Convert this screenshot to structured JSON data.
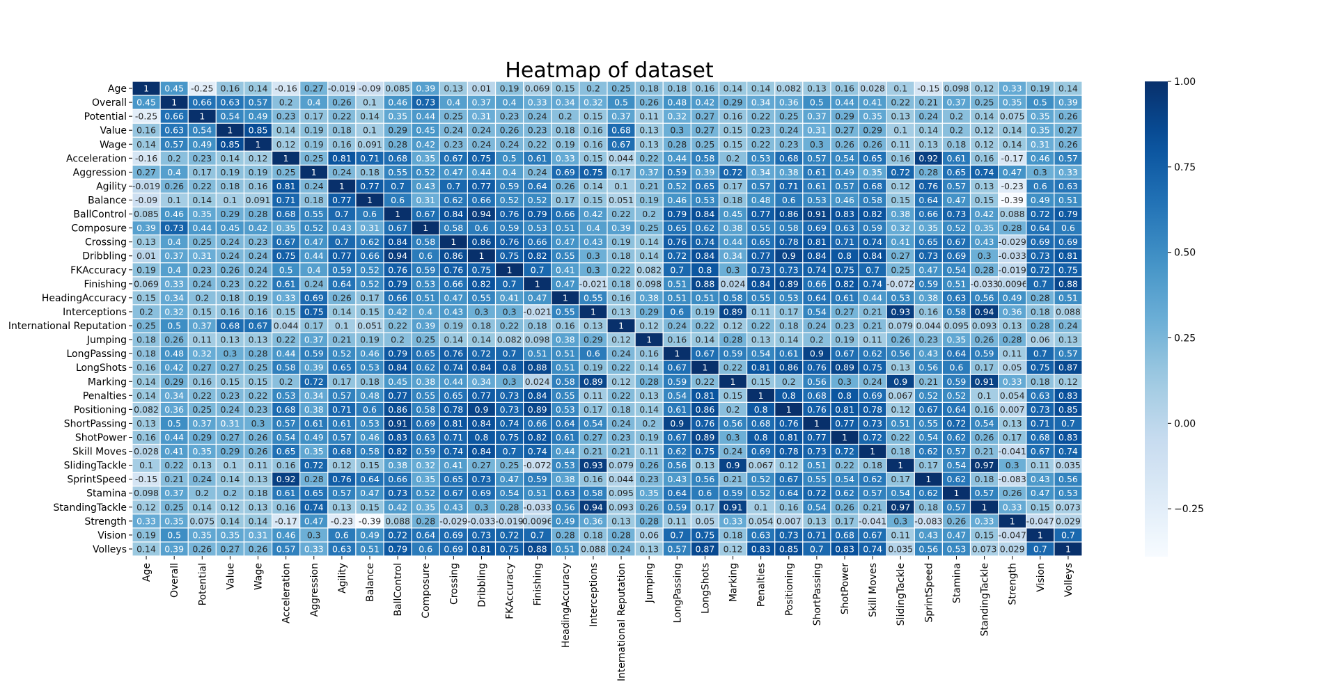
{
  "chart_data": {
    "type": "heatmap",
    "title": "Heatmap of dataset",
    "labels": [
      "Age",
      "Overall",
      "Potential",
      "Value",
      "Wage",
      "Acceleration",
      "Aggression",
      "Agility",
      "Balance",
      "BallControl",
      "Composure",
      "Crossing",
      "Dribbling",
      "FKAccuracy",
      "Finishing",
      "HeadingAccuracy",
      "Interceptions",
      "International Reputation",
      "Jumping",
      "LongPassing",
      "LongShots",
      "Marking",
      "Penalties",
      "Positioning",
      "ShortPassing",
      "ShotPower",
      "Skill Moves",
      "SlidingTackle",
      "SprintSpeed",
      "Stamina",
      "StandingTackle",
      "Strength",
      "Vision",
      "Volleys"
    ],
    "values": [
      [
        "1",
        "0.45",
        "-0.25",
        "0.16",
        "0.14",
        "-0.16",
        "0.27",
        "-0.019",
        "-0.09",
        "0.085",
        "0.39",
        "0.13",
        "0.01",
        "0.19",
        "0.069",
        "0.15",
        "0.2",
        "0.25",
        "0.18",
        "0.18",
        "0.16",
        "0.14",
        "0.14",
        "0.082",
        "0.13",
        "0.16",
        "0.028",
        "0.1",
        "-0.15",
        "0.098",
        "0.12",
        "0.33",
        "0.19",
        "0.14"
      ],
      [
        "0.45",
        "1",
        "0.66",
        "0.63",
        "0.57",
        "0.2",
        "0.4",
        "0.26",
        "0.1",
        "0.46",
        "0.73",
        "0.4",
        "0.37",
        "0.4",
        "0.33",
        "0.34",
        "0.32",
        "0.5",
        "0.26",
        "0.48",
        "0.42",
        "0.29",
        "0.34",
        "0.36",
        "0.5",
        "0.44",
        "0.41",
        "0.22",
        "0.21",
        "0.37",
        "0.25",
        "0.35",
        "0.5",
        "0.39"
      ],
      [
        "-0.25",
        "0.66",
        "1",
        "0.54",
        "0.49",
        "0.23",
        "0.17",
        "0.22",
        "0.14",
        "0.35",
        "0.44",
        "0.25",
        "0.31",
        "0.23",
        "0.24",
        "0.2",
        "0.15",
        "0.37",
        "0.11",
        "0.32",
        "0.27",
        "0.16",
        "0.22",
        "0.25",
        "0.37",
        "0.29",
        "0.35",
        "0.13",
        "0.24",
        "0.2",
        "0.14",
        "0.075",
        "0.35",
        "0.26"
      ],
      [
        "0.16",
        "0.63",
        "0.54",
        "1",
        "0.85",
        "0.14",
        "0.19",
        "0.18",
        "0.1",
        "0.29",
        "0.45",
        "0.24",
        "0.24",
        "0.26",
        "0.23",
        "0.18",
        "0.16",
        "0.68",
        "0.13",
        "0.3",
        "0.27",
        "0.15",
        "0.23",
        "0.24",
        "0.31",
        "0.27",
        "0.29",
        "0.1",
        "0.14",
        "0.2",
        "0.12",
        "0.14",
        "0.35",
        "0.27"
      ],
      [
        "0.14",
        "0.57",
        "0.49",
        "0.85",
        "1",
        "0.12",
        "0.19",
        "0.16",
        "0.091",
        "0.28",
        "0.42",
        "0.23",
        "0.24",
        "0.24",
        "0.22",
        "0.19",
        "0.16",
        "0.67",
        "0.13",
        "0.28",
        "0.25",
        "0.15",
        "0.22",
        "0.23",
        "0.3",
        "0.26",
        "0.26",
        "0.11",
        "0.13",
        "0.18",
        "0.12",
        "0.14",
        "0.31",
        "0.26"
      ],
      [
        "-0.16",
        "0.2",
        "0.23",
        "0.14",
        "0.12",
        "1",
        "0.25",
        "0.81",
        "0.71",
        "0.68",
        "0.35",
        "0.67",
        "0.75",
        "0.5",
        "0.61",
        "0.33",
        "0.15",
        "0.044",
        "0.22",
        "0.44",
        "0.58",
        "0.2",
        "0.53",
        "0.68",
        "0.57",
        "0.54",
        "0.65",
        "0.16",
        "0.92",
        "0.61",
        "0.16",
        "-0.17",
        "0.46",
        "0.57"
      ],
      [
        "0.27",
        "0.4",
        "0.17",
        "0.19",
        "0.19",
        "0.25",
        "1",
        "0.24",
        "0.18",
        "0.55",
        "0.52",
        "0.47",
        "0.44",
        "0.4",
        "0.24",
        "0.69",
        "0.75",
        "0.17",
        "0.37",
        "0.59",
        "0.39",
        "0.72",
        "0.34",
        "0.38",
        "0.61",
        "0.49",
        "0.35",
        "0.72",
        "0.28",
        "0.65",
        "0.74",
        "0.47",
        "0.3",
        "0.33"
      ],
      [
        "-0.019",
        "0.26",
        "0.22",
        "0.18",
        "0.16",
        "0.81",
        "0.24",
        "1",
        "0.77",
        "0.7",
        "0.43",
        "0.7",
        "0.77",
        "0.59",
        "0.64",
        "0.26",
        "0.14",
        "0.1",
        "0.21",
        "0.52",
        "0.65",
        "0.17",
        "0.57",
        "0.71",
        "0.61",
        "0.57",
        "0.68",
        "0.12",
        "0.76",
        "0.57",
        "0.13",
        "-0.23",
        "0.6",
        "0.63"
      ],
      [
        "-0.09",
        "0.1",
        "0.14",
        "0.1",
        "0.091",
        "0.71",
        "0.18",
        "0.77",
        "1",
        "0.6",
        "0.31",
        "0.62",
        "0.66",
        "0.52",
        "0.52",
        "0.17",
        "0.15",
        "0.051",
        "0.19",
        "0.46",
        "0.53",
        "0.18",
        "0.48",
        "0.6",
        "0.53",
        "0.46",
        "0.58",
        "0.15",
        "0.64",
        "0.47",
        "0.15",
        "-0.39",
        "0.49",
        "0.51"
      ],
      [
        "0.085",
        "0.46",
        "0.35",
        "0.29",
        "0.28",
        "0.68",
        "0.55",
        "0.7",
        "0.6",
        "1",
        "0.67",
        "0.84",
        "0.94",
        "0.76",
        "0.79",
        "0.66",
        "0.42",
        "0.22",
        "0.2",
        "0.79",
        "0.84",
        "0.45",
        "0.77",
        "0.86",
        "0.91",
        "0.83",
        "0.82",
        "0.38",
        "0.66",
        "0.73",
        "0.42",
        "0.088",
        "0.72",
        "0.79"
      ],
      [
        "0.39",
        "0.73",
        "0.44",
        "0.45",
        "0.42",
        "0.35",
        "0.52",
        "0.43",
        "0.31",
        "0.67",
        "1",
        "0.58",
        "0.6",
        "0.59",
        "0.53",
        "0.51",
        "0.4",
        "0.39",
        "0.25",
        "0.65",
        "0.62",
        "0.38",
        "0.55",
        "0.58",
        "0.69",
        "0.63",
        "0.59",
        "0.32",
        "0.35",
        "0.52",
        "0.35",
        "0.28",
        "0.64",
        "0.6"
      ],
      [
        "0.13",
        "0.4",
        "0.25",
        "0.24",
        "0.23",
        "0.67",
        "0.47",
        "0.7",
        "0.62",
        "0.84",
        "0.58",
        "1",
        "0.86",
        "0.76",
        "0.66",
        "0.47",
        "0.43",
        "0.19",
        "0.14",
        "0.76",
        "0.74",
        "0.44",
        "0.65",
        "0.78",
        "0.81",
        "0.71",
        "0.74",
        "0.41",
        "0.65",
        "0.67",
        "0.43",
        "-0.029",
        "0.69",
        "0.69"
      ],
      [
        "0.01",
        "0.37",
        "0.31",
        "0.24",
        "0.24",
        "0.75",
        "0.44",
        "0.77",
        "0.66",
        "0.94",
        "0.6",
        "0.86",
        "1",
        "0.75",
        "0.82",
        "0.55",
        "0.3",
        "0.18",
        "0.14",
        "0.72",
        "0.84",
        "0.34",
        "0.77",
        "0.9",
        "0.84",
        "0.8",
        "0.84",
        "0.27",
        "0.73",
        "0.69",
        "0.3",
        "-0.033",
        "0.73",
        "0.81"
      ],
      [
        "0.19",
        "0.4",
        "0.23",
        "0.26",
        "0.24",
        "0.5",
        "0.4",
        "0.59",
        "0.52",
        "0.76",
        "0.59",
        "0.76",
        "0.75",
        "1",
        "0.7",
        "0.41",
        "0.3",
        "0.22",
        "0.082",
        "0.7",
        "0.8",
        "0.3",
        "0.73",
        "0.73",
        "0.74",
        "0.75",
        "0.7",
        "0.25",
        "0.47",
        "0.54",
        "0.28",
        "-0.019",
        "0.72",
        "0.75"
      ],
      [
        "0.069",
        "0.33",
        "0.24",
        "0.23",
        "0.22",
        "0.61",
        "0.24",
        "0.64",
        "0.52",
        "0.79",
        "0.53",
        "0.66",
        "0.82",
        "0.7",
        "1",
        "0.47",
        "-0.021",
        "0.18",
        "0.098",
        "0.51",
        "0.88",
        "0.024",
        "0.84",
        "0.89",
        "0.66",
        "0.82",
        "0.74",
        "-0.072",
        "0.59",
        "0.51",
        "-0.033",
        "0.0096",
        "0.7",
        "0.88"
      ],
      [
        "0.15",
        "0.34",
        "0.2",
        "0.18",
        "0.19",
        "0.33",
        "0.69",
        "0.26",
        "0.17",
        "0.66",
        "0.51",
        "0.47",
        "0.55",
        "0.41",
        "0.47",
        "1",
        "0.55",
        "0.16",
        "0.38",
        "0.51",
        "0.51",
        "0.58",
        "0.55",
        "0.53",
        "0.64",
        "0.61",
        "0.44",
        "0.53",
        "0.38",
        "0.63",
        "0.56",
        "0.49",
        "0.28",
        "0.51"
      ],
      [
        "0.2",
        "0.32",
        "0.15",
        "0.16",
        "0.16",
        "0.15",
        "0.75",
        "0.14",
        "0.15",
        "0.42",
        "0.4",
        "0.43",
        "0.3",
        "0.3",
        "-0.021",
        "0.55",
        "1",
        "0.13",
        "0.29",
        "0.6",
        "0.19",
        "0.89",
        "0.11",
        "0.17",
        "0.54",
        "0.27",
        "0.21",
        "0.93",
        "0.16",
        "0.58",
        "0.94",
        "0.36",
        "0.18",
        "0.088"
      ],
      [
        "0.25",
        "0.5",
        "0.37",
        "0.68",
        "0.67",
        "0.044",
        "0.17",
        "0.1",
        "0.051",
        "0.22",
        "0.39",
        "0.19",
        "0.18",
        "0.22",
        "0.18",
        "0.16",
        "0.13",
        "1",
        "0.12",
        "0.24",
        "0.22",
        "0.12",
        "0.22",
        "0.18",
        "0.24",
        "0.23",
        "0.21",
        "0.079",
        "0.044",
        "0.095",
        "0.093",
        "0.13",
        "0.28",
        "0.24"
      ],
      [
        "0.18",
        "0.26",
        "0.11",
        "0.13",
        "0.13",
        "0.22",
        "0.37",
        "0.21",
        "0.19",
        "0.2",
        "0.25",
        "0.14",
        "0.14",
        "0.082",
        "0.098",
        "0.38",
        "0.29",
        "0.12",
        "1",
        "0.16",
        "0.14",
        "0.28",
        "0.13",
        "0.14",
        "0.2",
        "0.19",
        "0.11",
        "0.26",
        "0.23",
        "0.35",
        "0.26",
        "0.28",
        "0.06",
        "0.13"
      ],
      [
        "0.18",
        "0.48",
        "0.32",
        "0.3",
        "0.28",
        "0.44",
        "0.59",
        "0.52",
        "0.46",
        "0.79",
        "0.65",
        "0.76",
        "0.72",
        "0.7",
        "0.51",
        "0.51",
        "0.6",
        "0.24",
        "0.16",
        "1",
        "0.67",
        "0.59",
        "0.54",
        "0.61",
        "0.9",
        "0.67",
        "0.62",
        "0.56",
        "0.43",
        "0.64",
        "0.59",
        "0.11",
        "0.7",
        "0.57"
      ],
      [
        "0.16",
        "0.42",
        "0.27",
        "0.27",
        "0.25",
        "0.58",
        "0.39",
        "0.65",
        "0.53",
        "0.84",
        "0.62",
        "0.74",
        "0.84",
        "0.8",
        "0.88",
        "0.51",
        "0.19",
        "0.22",
        "0.14",
        "0.67",
        "1",
        "0.22",
        "0.81",
        "0.86",
        "0.76",
        "0.89",
        "0.75",
        "0.13",
        "0.56",
        "0.6",
        "0.17",
        "0.05",
        "0.75",
        "0.87"
      ],
      [
        "0.14",
        "0.29",
        "0.16",
        "0.15",
        "0.15",
        "0.2",
        "0.72",
        "0.17",
        "0.18",
        "0.45",
        "0.38",
        "0.44",
        "0.34",
        "0.3",
        "0.024",
        "0.58",
        "0.89",
        "0.12",
        "0.28",
        "0.59",
        "0.22",
        "1",
        "0.15",
        "0.2",
        "0.56",
        "0.3",
        "0.24",
        "0.9",
        "0.21",
        "0.59",
        "0.91",
        "0.33",
        "0.18",
        "0.12"
      ],
      [
        "0.14",
        "0.34",
        "0.22",
        "0.23",
        "0.22",
        "0.53",
        "0.34",
        "0.57",
        "0.48",
        "0.77",
        "0.55",
        "0.65",
        "0.77",
        "0.73",
        "0.84",
        "0.55",
        "0.11",
        "0.22",
        "0.13",
        "0.54",
        "0.81",
        "0.15",
        "1",
        "0.8",
        "0.68",
        "0.8",
        "0.69",
        "0.067",
        "0.52",
        "0.52",
        "0.1",
        "0.054",
        "0.63",
        "0.83"
      ],
      [
        "0.082",
        "0.36",
        "0.25",
        "0.24",
        "0.23",
        "0.68",
        "0.38",
        "0.71",
        "0.6",
        "0.86",
        "0.58",
        "0.78",
        "0.9",
        "0.73",
        "0.89",
        "0.53",
        "0.17",
        "0.18",
        "0.14",
        "0.61",
        "0.86",
        "0.2",
        "0.8",
        "1",
        "0.76",
        "0.81",
        "0.78",
        "0.12",
        "0.67",
        "0.64",
        "0.16",
        "0.007",
        "0.73",
        "0.85"
      ],
      [
        "0.13",
        "0.5",
        "0.37",
        "0.31",
        "0.3",
        "0.57",
        "0.61",
        "0.61",
        "0.53",
        "0.91",
        "0.69",
        "0.81",
        "0.84",
        "0.74",
        "0.66",
        "0.64",
        "0.54",
        "0.24",
        "0.2",
        "0.9",
        "0.76",
        "0.56",
        "0.68",
        "0.76",
        "1",
        "0.77",
        "0.73",
        "0.51",
        "0.55",
        "0.72",
        "0.54",
        "0.13",
        "0.71",
        "0.7"
      ],
      [
        "0.16",
        "0.44",
        "0.29",
        "0.27",
        "0.26",
        "0.54",
        "0.49",
        "0.57",
        "0.46",
        "0.83",
        "0.63",
        "0.71",
        "0.8",
        "0.75",
        "0.82",
        "0.61",
        "0.27",
        "0.23",
        "0.19",
        "0.67",
        "0.89",
        "0.3",
        "0.8",
        "0.81",
        "0.77",
        "1",
        "0.72",
        "0.22",
        "0.54",
        "0.62",
        "0.26",
        "0.17",
        "0.68",
        "0.83"
      ],
      [
        "0.028",
        "0.41",
        "0.35",
        "0.29",
        "0.26",
        "0.65",
        "0.35",
        "0.68",
        "0.58",
        "0.82",
        "0.59",
        "0.74",
        "0.84",
        "0.7",
        "0.74",
        "0.44",
        "0.21",
        "0.21",
        "0.11",
        "0.62",
        "0.75",
        "0.24",
        "0.69",
        "0.78",
        "0.73",
        "0.72",
        "1",
        "0.18",
        "0.62",
        "0.57",
        "0.21",
        "-0.041",
        "0.67",
        "0.74"
      ],
      [
        "0.1",
        "0.22",
        "0.13",
        "0.1",
        "0.11",
        "0.16",
        "0.72",
        "0.12",
        "0.15",
        "0.38",
        "0.32",
        "0.41",
        "0.27",
        "0.25",
        "-0.072",
        "0.53",
        "0.93",
        "0.079",
        "0.26",
        "0.56",
        "0.13",
        "0.9",
        "0.067",
        "0.12",
        "0.51",
        "0.22",
        "0.18",
        "1",
        "0.17",
        "0.54",
        "0.97",
        "0.3",
        "0.11",
        "0.035"
      ],
      [
        "-0.15",
        "0.21",
        "0.24",
        "0.14",
        "0.13",
        "0.92",
        "0.28",
        "0.76",
        "0.64",
        "0.66",
        "0.35",
        "0.65",
        "0.73",
        "0.47",
        "0.59",
        "0.38",
        "0.16",
        "0.044",
        "0.23",
        "0.43",
        "0.56",
        "0.21",
        "0.52",
        "0.67",
        "0.55",
        "0.54",
        "0.62",
        "0.17",
        "1",
        "0.62",
        "0.18",
        "-0.083",
        "0.43",
        "0.56"
      ],
      [
        "0.098",
        "0.37",
        "0.2",
        "0.2",
        "0.18",
        "0.61",
        "0.65",
        "0.57",
        "0.47",
        "0.73",
        "0.52",
        "0.67",
        "0.69",
        "0.54",
        "0.51",
        "0.63",
        "0.58",
        "0.095",
        "0.35",
        "0.64",
        "0.6",
        "0.59",
        "0.52",
        "0.64",
        "0.72",
        "0.62",
        "0.57",
        "0.54",
        "0.62",
        "1",
        "0.57",
        "0.26",
        "0.47",
        "0.53"
      ],
      [
        "0.12",
        "0.25",
        "0.14",
        "0.12",
        "0.13",
        "0.16",
        "0.74",
        "0.13",
        "0.15",
        "0.42",
        "0.35",
        "0.43",
        "0.3",
        "0.28",
        "-0.033",
        "0.56",
        "0.94",
        "0.093",
        "0.26",
        "0.59",
        "0.17",
        "0.91",
        "0.1",
        "0.16",
        "0.54",
        "0.26",
        "0.21",
        "0.97",
        "0.18",
        "0.57",
        "1",
        "0.33",
        "0.15",
        "0.073"
      ],
      [
        "0.33",
        "0.35",
        "0.075",
        "0.14",
        "0.14",
        "-0.17",
        "0.47",
        "-0.23",
        "-0.39",
        "0.088",
        "0.28",
        "-0.029",
        "-0.033",
        "-0.019",
        "0.0096",
        "0.49",
        "0.36",
        "0.13",
        "0.28",
        "0.11",
        "0.05",
        "0.33",
        "0.054",
        "0.007",
        "0.13",
        "0.17",
        "-0.041",
        "0.3",
        "-0.083",
        "0.26",
        "0.33",
        "1",
        "-0.047",
        "0.029"
      ],
      [
        "0.19",
        "0.5",
        "0.35",
        "0.35",
        "0.31",
        "0.46",
        "0.3",
        "0.6",
        "0.49",
        "0.72",
        "0.64",
        "0.69",
        "0.73",
        "0.72",
        "0.7",
        "0.28",
        "0.18",
        "0.28",
        "0.06",
        "0.7",
        "0.75",
        "0.18",
        "0.63",
        "0.73",
        "0.71",
        "0.68",
        "0.67",
        "0.11",
        "0.43",
        "0.47",
        "0.15",
        "-0.047",
        "1",
        "0.7"
      ],
      [
        "0.14",
        "0.39",
        "0.26",
        "0.27",
        "0.26",
        "0.57",
        "0.33",
        "0.63",
        "0.51",
        "0.79",
        "0.6",
        "0.69",
        "0.81",
        "0.75",
        "0.88",
        "0.51",
        "0.088",
        "0.24",
        "0.13",
        "0.57",
        "0.87",
        "0.12",
        "0.83",
        "0.85",
        "0.7",
        "0.83",
        "0.74",
        "0.035",
        "0.56",
        "0.53",
        "0.073",
        "0.029",
        "0.7",
        "1"
      ]
    ],
    "colormap": "Blues",
    "vmin": -0.39,
    "vmax": 1,
    "colorbar_ticks": [
      "1.00",
      "0.75",
      "0.50",
      "0.25",
      "0.00",
      "−0.25"
    ],
    "grid_line_color": "#ffffff",
    "annotated": true
  }
}
